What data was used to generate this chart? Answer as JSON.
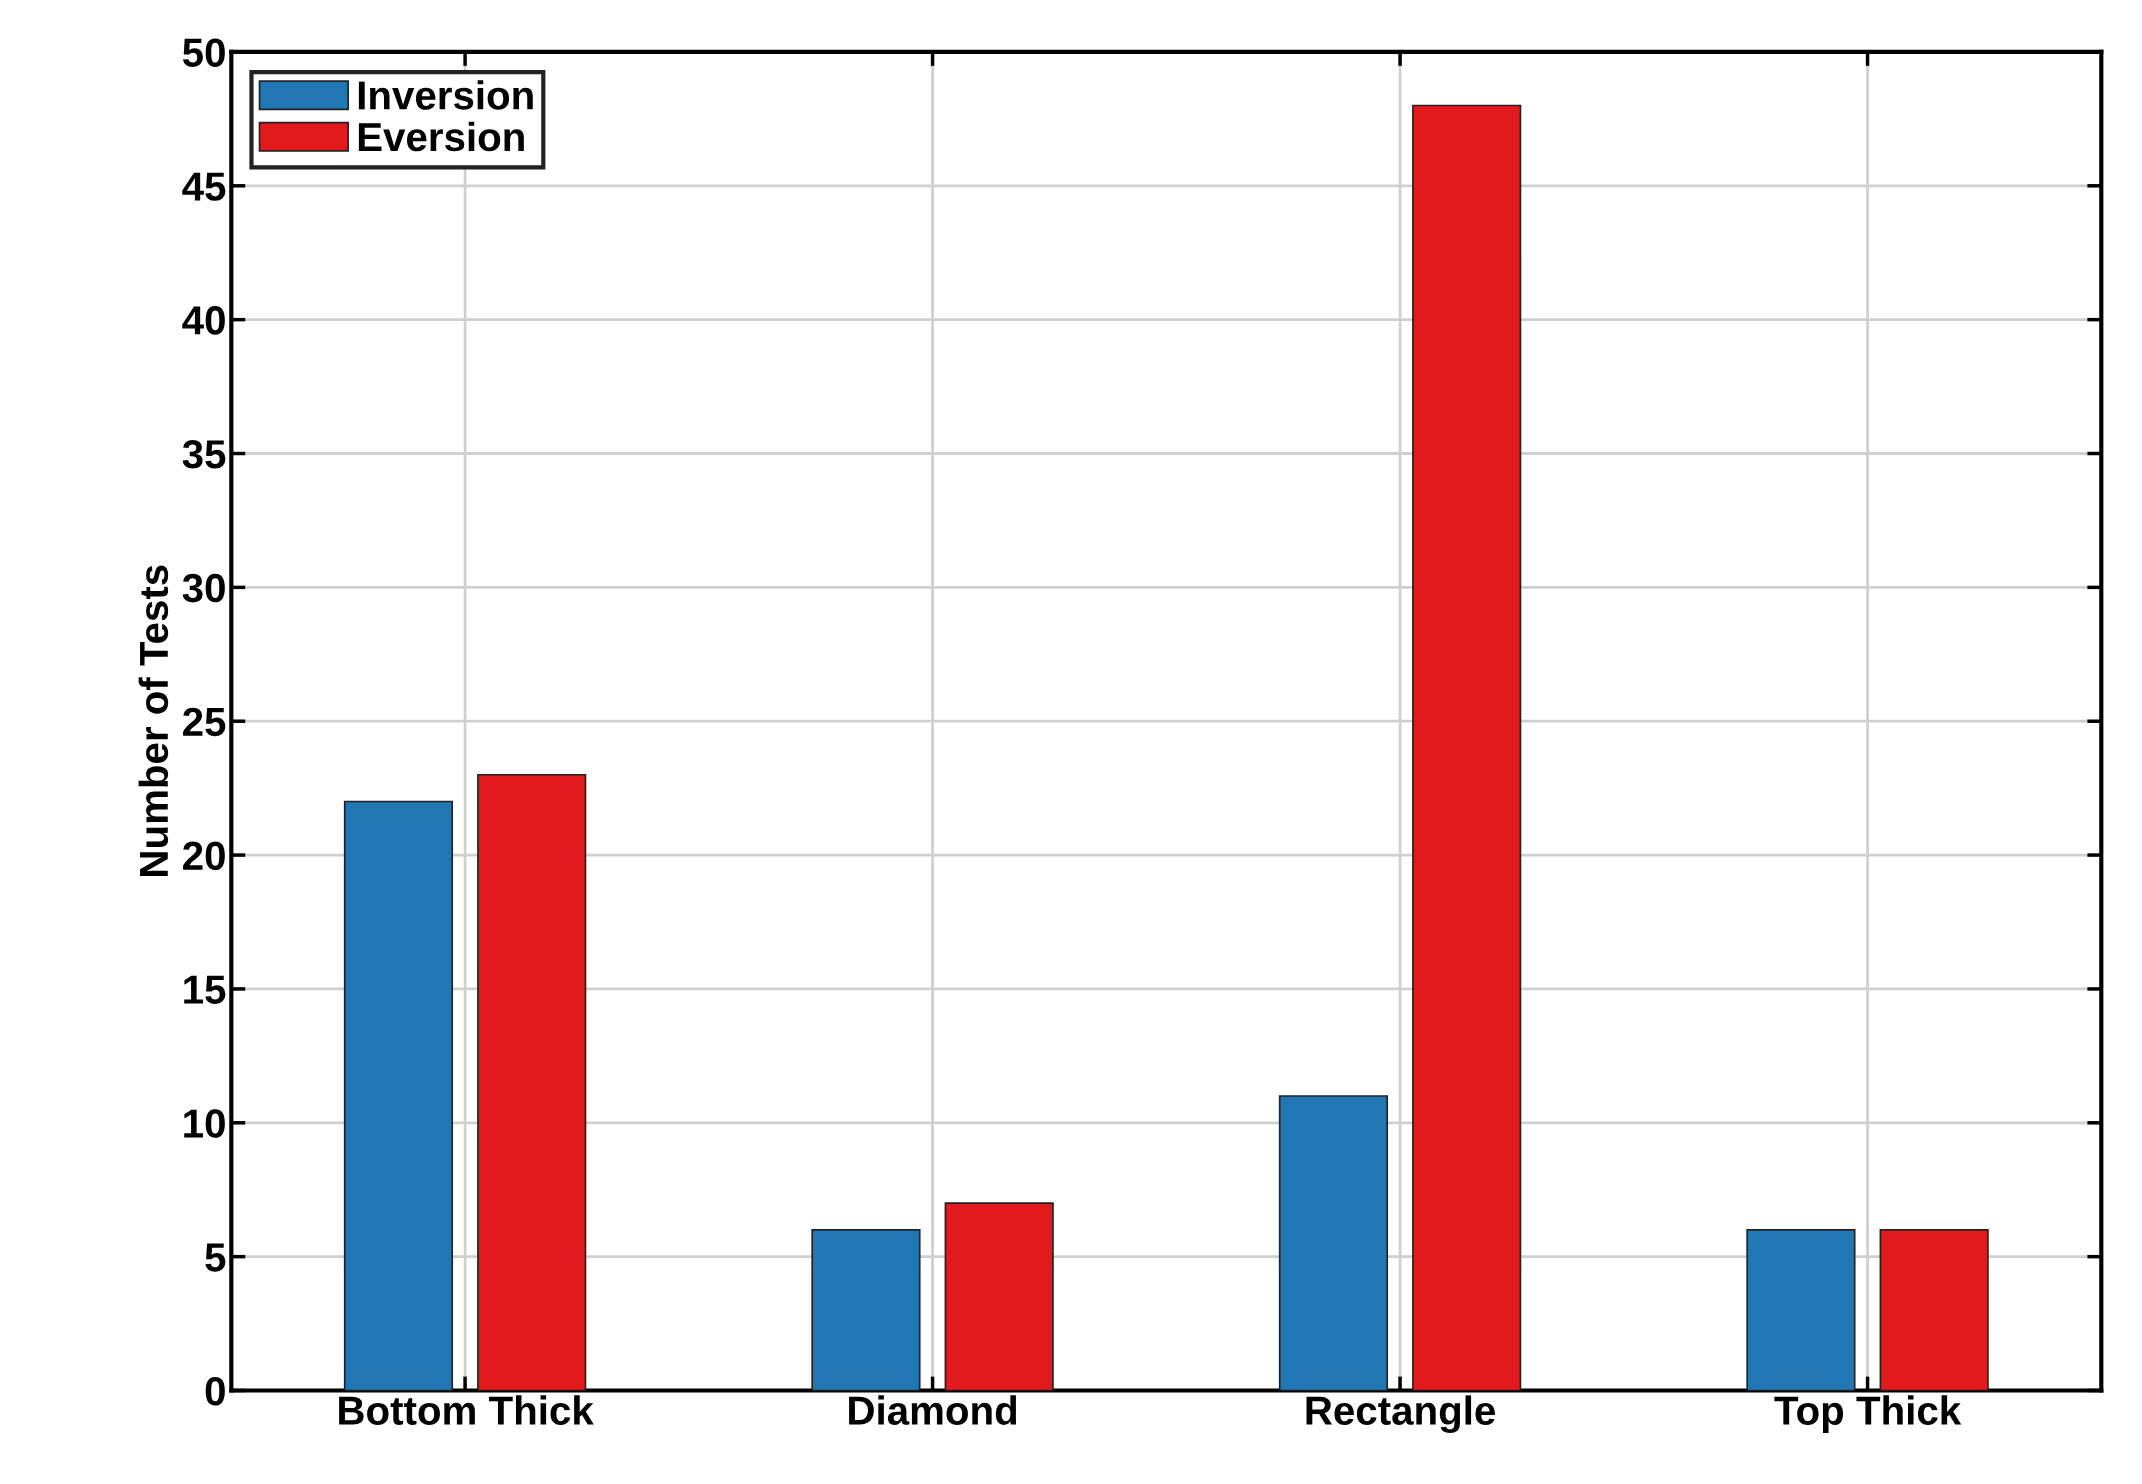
{
  "chart_data": {
    "type": "bar",
    "ylabel": "Number of Tests",
    "categories": [
      "Bottom Thick",
      "Diamond",
      "Rectangle",
      "Top Thick"
    ],
    "series": [
      {
        "name": "Inversion",
        "color": "#2077b4",
        "values": [
          22,
          6,
          11,
          6
        ]
      },
      {
        "name": "Eversion",
        "color": "#e31a1c",
        "values": [
          23,
          7,
          48,
          6
        ]
      }
    ],
    "ylim": [
      0,
      50
    ],
    "yticks": [
      0,
      5,
      10,
      15,
      20,
      25,
      30,
      35,
      40,
      45,
      50
    ],
    "grid": true,
    "legend": "top left"
  }
}
